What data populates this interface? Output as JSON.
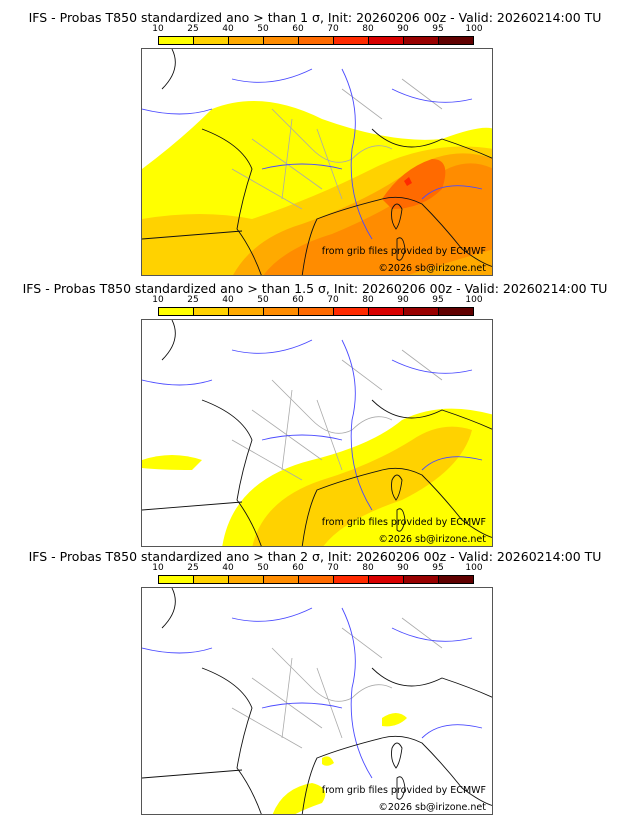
{
  "colorbar": {
    "ticks": [
      "10",
      "25",
      "40",
      "50",
      "60",
      "70",
      "80",
      "90",
      "95",
      "100"
    ],
    "colors": [
      "#ffff00",
      "#ffd200",
      "#ffaa00",
      "#ff8c00",
      "#ff6a00",
      "#ff2a00",
      "#d80000",
      "#980000",
      "#600000"
    ]
  },
  "panels": [
    {
      "title": "IFS - Probas T850  standardized ano > than 1 σ, Init: 20260206 00z - Valid: 20260214:00 TU",
      "threshold_sigma": 1
    },
    {
      "title": "IFS - Probas T850  standardized ano > than 1.5 σ, Init: 20260206 00z - Valid: 20260214:00 TU",
      "threshold_sigma": 1.5
    },
    {
      "title": "IFS - Probas T850  standardized ano > than 2 σ, Init: 20260206 00z - Valid: 20260214:00 TU",
      "threshold_sigma": 2
    }
  ],
  "credits": {
    "source": "from grib files provided by ECMWF",
    "copyright": "©2026 sb@irizone.net"
  }
}
